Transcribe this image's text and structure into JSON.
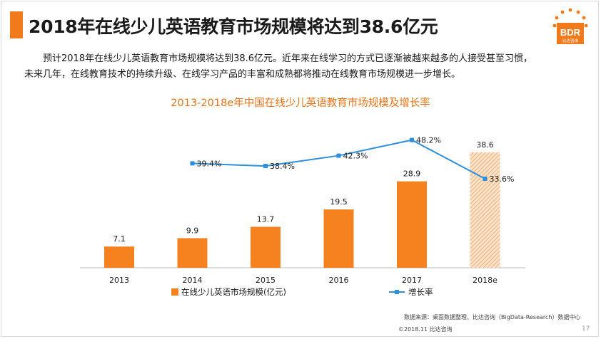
{
  "slide": {
    "title": "2018年在线少儿英语教育市场规模将达到38.6亿元",
    "description_line1": "预计2018年在线少儿英语教育市场规模将达到38.6亿元。近年来在线学习的方式已逐渐被越来越多的人接受甚至习惯，",
    "description_line2": "未来几年，在线教育技术的持续升级、在线学习产品的丰富和成熟都将推动在线教育市场规模进一步增长。",
    "logo_text": "BDR",
    "logo_subtext": "比达咨询",
    "source": "数据来源：桌面数据整理、比达咨询（BigData-Research）数据中心",
    "copyright": "©2018.11 比达咨询",
    "page_number": "17",
    "brand_color": "#f07a1c"
  },
  "chart_data": {
    "type": "bar",
    "title": "2013-2018e年中国在线少儿英语教育市场规模及增长率",
    "categories": [
      "2013",
      "2014",
      "2015",
      "2016",
      "2017",
      "2018e"
    ],
    "series": [
      {
        "name": "在线少儿英语市场规模(亿元)",
        "type": "bar",
        "values": [
          7.1,
          9.9,
          13.7,
          19.5,
          28.9,
          38.6
        ],
        "labels": [
          "7.1",
          "9.9",
          "13.7",
          "19.5",
          "28.9",
          "38.6"
        ],
        "color": "#f5811f",
        "estimated_last": true
      },
      {
        "name": "增长率",
        "type": "line",
        "values": [
          null,
          39.4,
          38.4,
          42.3,
          48.2,
          33.6
        ],
        "labels": [
          null,
          "39.4%",
          "38.4%",
          "42.3%",
          "48.2%",
          "33.6%"
        ],
        "color": "#2e8fdd"
      }
    ],
    "ylim_bar": [
      0,
      40
    ],
    "ylim_line": [
      0,
      60
    ],
    "xlabel": "",
    "ylabel": "",
    "legend_position": "bottom"
  }
}
